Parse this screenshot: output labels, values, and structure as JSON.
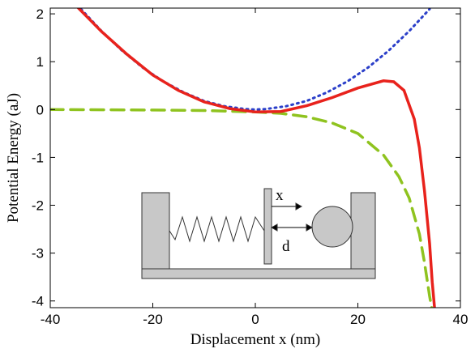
{
  "chart_data": {
    "type": "line",
    "xlabel": "Displacement x (nm)",
    "ylabel": "Potential Energy (aJ)",
    "xlim": [
      -40,
      40
    ],
    "ylim": [
      -4.14,
      2.12
    ],
    "xticks": [
      -40,
      -20,
      0,
      20,
      40
    ],
    "yticks": [
      2,
      1,
      0,
      -1,
      -2,
      -3,
      -4
    ],
    "annotations": [
      "x",
      "d"
    ],
    "series": [
      {
        "color": "#2b3fc9",
        "style": "dotted",
        "x": [
          -34,
          -30,
          -26,
          -22,
          -18,
          -14,
          -10,
          -6,
          -2,
          0,
          2,
          6,
          10,
          14,
          18,
          22,
          26,
          30,
          34
        ],
        "values": [
          2.1,
          1.64,
          1.23,
          0.88,
          0.59,
          0.36,
          0.18,
          0.07,
          0.01,
          0,
          0.01,
          0.07,
          0.18,
          0.36,
          0.59,
          0.88,
          1.23,
          1.64,
          2.1
        ]
      },
      {
        "color": "#8fc31f",
        "style": "dashed",
        "x": [
          -40,
          -20,
          -10,
          0,
          5,
          10,
          15,
          20,
          25,
          28,
          30,
          32,
          33,
          34,
          34.5
        ],
        "values": [
          0,
          -0.01,
          -0.02,
          -0.05,
          -0.08,
          -0.15,
          -0.28,
          -0.5,
          -0.95,
          -1.4,
          -1.85,
          -2.6,
          -3.2,
          -3.9,
          -4.2
        ]
      },
      {
        "color": "#e8221c",
        "style": "solid",
        "x": [
          -34.5,
          -30,
          -25,
          -20,
          -15,
          -10,
          -5,
          0,
          5,
          10,
          15,
          20,
          25,
          27,
          29,
          31,
          32,
          33,
          34,
          34.5,
          35
        ],
        "values": [
          2.12,
          1.63,
          1.15,
          0.72,
          0.4,
          0.16,
          0.02,
          -0.05,
          -0.04,
          0.08,
          0.25,
          0.45,
          0.6,
          0.58,
          0.4,
          -0.2,
          -0.8,
          -1.7,
          -2.8,
          -3.6,
          -4.2
        ]
      }
    ]
  }
}
